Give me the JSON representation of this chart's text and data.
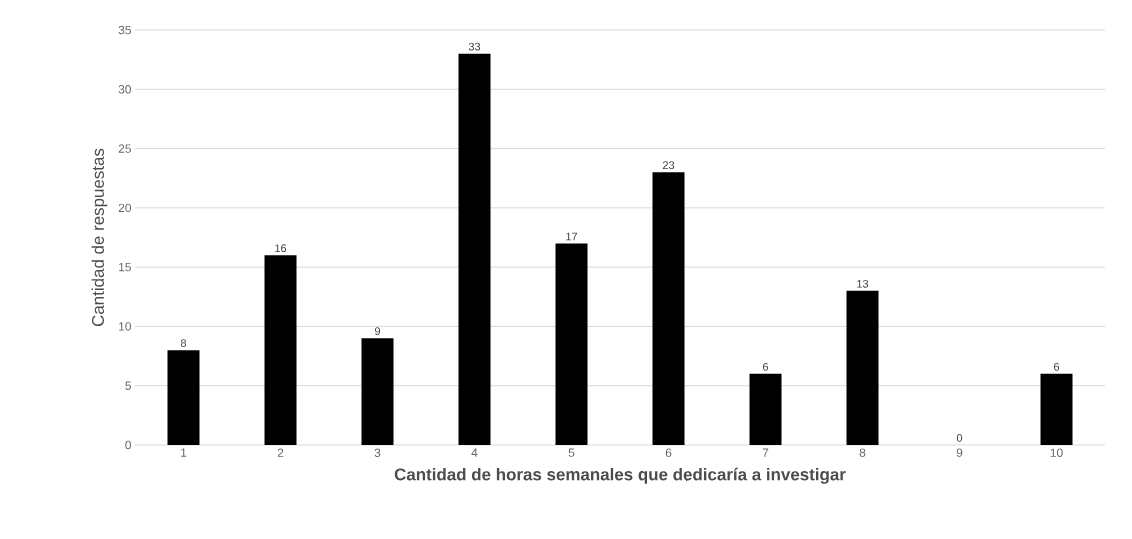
{
  "chart_data": {
    "type": "bar",
    "xlabel": "Cantidad de horas semanales que dedicaría a investigar",
    "ylabel": "Cantidad de respuestas",
    "categories": [
      "1",
      "2",
      "3",
      "4",
      "5",
      "6",
      "7",
      "8",
      "9",
      "10"
    ],
    "values": [
      8,
      16,
      9,
      33,
      17,
      23,
      6,
      13,
      0,
      6
    ],
    "color": "#000000",
    "ylim": [
      0,
      35
    ],
    "yticks": [
      0,
      5,
      10,
      15,
      20,
      25,
      30,
      35
    ],
    "grid": "y",
    "data_labels": true
  }
}
